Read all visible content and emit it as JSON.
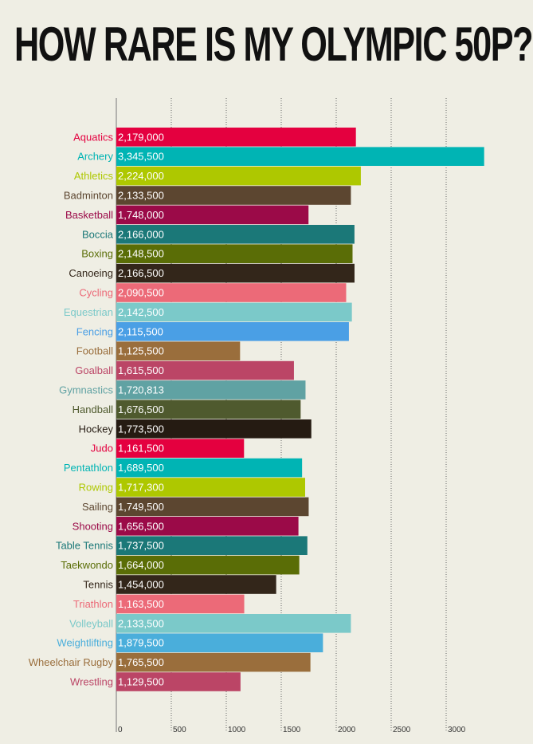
{
  "title": "HOW RARE IS MY OLYMPIC 50P?",
  "chart_data": {
    "type": "bar",
    "orientation": "horizontal",
    "title": "HOW RARE IS MY OLYMPIC 50P?",
    "xlabel": "",
    "ylabel": "",
    "xlim": [
      0,
      3500
    ],
    "x_ticks": [
      0,
      500,
      1000,
      1500,
      2000,
      2500,
      3000
    ],
    "x_tick_labels": [
      "0",
      "500",
      "1000",
      "1500",
      "2000",
      "2500",
      "3000"
    ],
    "grid": "vertical dotted",
    "categories": [
      "Aquatics",
      "Archery",
      "Athletics",
      "Badminton",
      "Basketball",
      "Boccia",
      "Boxing",
      "Canoeing",
      "Cycling",
      "Equestrian",
      "Fencing",
      "Football",
      "Goalball",
      "Gymnastics",
      "Handball",
      "Hockey",
      "Judo",
      "Pentathlon",
      "Rowing",
      "Sailing",
      "Shooting",
      "Table Tennis",
      "Taekwondo",
      "Tennis",
      "Triathlon",
      "Volleyball",
      "Weightlifting",
      "Wheelchair Rugby",
      "Wrestling"
    ],
    "values": [
      2179000,
      3345500,
      2224000,
      2133500,
      1748000,
      2166000,
      2148500,
      2166500,
      2090500,
      2142500,
      2115500,
      1125500,
      1615500,
      1720813,
      1676500,
      1773500,
      1161500,
      1689500,
      1717300,
      1749500,
      1656500,
      1737500,
      1664000,
      1454000,
      1163500,
      2133500,
      1879500,
      1765500,
      1129500
    ],
    "value_labels": [
      "2,179,000",
      "3,345,500",
      "2,224,000",
      "2,133,500",
      "1,748,000",
      "2,166,000",
      "2,148,500",
      "2,166,500",
      "2,090,500",
      "2,142,500",
      "2,115,500",
      "1,125,500",
      "1,615,500",
      "1,720,813",
      "1,676,500",
      "1,773,500",
      "1,161,500",
      "1,689,500",
      "1,717,300",
      "1,749,500",
      "1,656,500",
      "1,737,500",
      "1,664,000",
      "1,454,000",
      "1,163,500",
      "2,133,500",
      "1,879,500",
      "1,765,500",
      "1,129,500"
    ],
    "colors": [
      "#e4003f",
      "#00b4b4",
      "#aec800",
      "#5c4630",
      "#9b0a48",
      "#1b7878",
      "#5a6d06",
      "#33261a",
      "#ec6a78",
      "#7bc9c9",
      "#4a9fe5",
      "#9a6e3c",
      "#bb4566",
      "#60a2a3",
      "#4f5a2e",
      "#251b12",
      "#e4003f",
      "#00b4b4",
      "#aec800",
      "#5c4630",
      "#9b0a48",
      "#1b7878",
      "#5a6d06",
      "#33261a",
      "#ec6a78",
      "#7bc9c9",
      "#4aaedb",
      "#9a6e3c",
      "#bb4566"
    ]
  }
}
